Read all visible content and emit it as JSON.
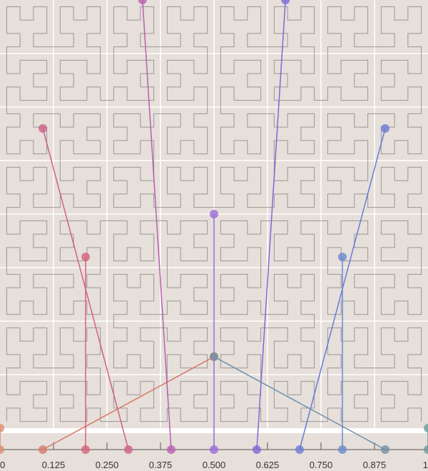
{
  "chart_data": {
    "type": "hilbert",
    "xlim": [
      0,
      1
    ],
    "xticks": [
      0,
      0.125,
      {
        "value": 0.25,
        "label": "0.250"
      },
      0.375,
      {
        "value": 0.5,
        "label": "0.500"
      },
      0.625,
      {
        "value": 0.75,
        "label": "0.750"
      },
      0.875,
      1
    ],
    "points": [
      {
        "t": 0,
        "x": 0,
        "y": 1,
        "color": "#d98c6a"
      },
      {
        "t": 0.1,
        "x": 0.5,
        "y": 0.833,
        "color": "#d9786a"
      },
      {
        "t": 0.2,
        "x": 0.2,
        "y": 0.6,
        "color": "#d9607a"
      },
      {
        "t": 0.3,
        "x": 0.1,
        "y": 0.3,
        "color": "#d0608a"
      },
      {
        "t": 0.4,
        "x": 0.333,
        "y": 0,
        "color": "#b85fb0"
      },
      {
        "t": 0.5,
        "x": 0.5,
        "y": 0.5,
        "color": "#9a6ad9"
      },
      {
        "t": 0.6,
        "x": 0.667,
        "y": 0,
        "color": "#7a6ad9"
      },
      {
        "t": 0.7,
        "x": 0.9,
        "y": 0.3,
        "color": "#6a7ad9"
      },
      {
        "t": 0.8,
        "x": 0.8,
        "y": 0.6,
        "color": "#6a8ad0"
      },
      {
        "t": 0.9,
        "x": 0.5,
        "y": 0.833,
        "color": "#7090a8"
      },
      {
        "t": 1,
        "x": 1,
        "y": 1,
        "color": "#6a9a9a"
      }
    ]
  }
}
